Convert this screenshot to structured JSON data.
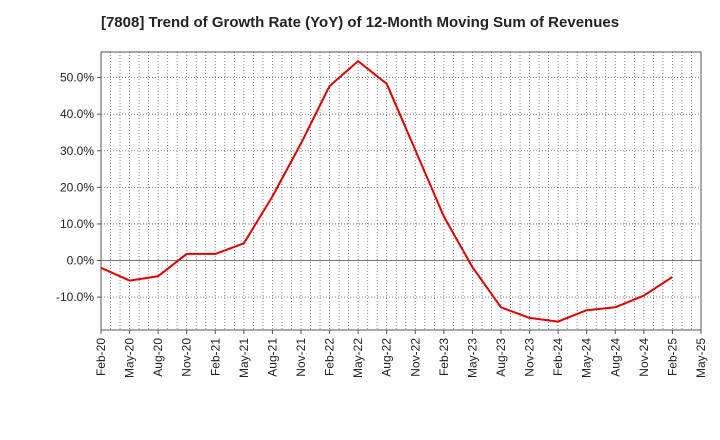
{
  "chart_data": {
    "type": "line",
    "title": "[7808]  Trend of Growth Rate (YoY) of 12-Month Moving Sum of Revenues",
    "xlabel": "",
    "ylabel": "",
    "x_tick_labels": [
      "Feb-20",
      "May-20",
      "Aug-20",
      "Nov-20",
      "Feb-21",
      "May-21",
      "Aug-21",
      "Nov-21",
      "Feb-22",
      "May-22",
      "Aug-22",
      "Nov-22",
      "Feb-23",
      "May-23",
      "Aug-23",
      "Nov-23",
      "Feb-24",
      "May-24",
      "Aug-24",
      "Nov-24",
      "Feb-25",
      "May-25"
    ],
    "y_ticks": [
      -10,
      0,
      10,
      20,
      30,
      40,
      50
    ],
    "y_tick_labels": [
      "-10.0%",
      "0.0%",
      "10.0%",
      "20.0%",
      "30.0%",
      "40.0%",
      "50.0%"
    ],
    "ylim": [
      -19,
      57
    ],
    "grid": true,
    "series": [
      {
        "color": "#e00000",
        "x": [
          "Feb-20",
          "May-20",
          "Aug-20",
          "Nov-20",
          "Feb-21",
          "May-21",
          "Aug-21",
          "Nov-21",
          "Feb-22",
          "May-22",
          "Aug-22",
          "Nov-22",
          "Feb-23",
          "May-23",
          "Aug-23",
          "Nov-23",
          "Feb-24",
          "May-24",
          "Aug-24",
          "Nov-24",
          "Feb-25"
        ],
        "values": [
          -2.0,
          -5.5,
          -4.3,
          1.8,
          1.8,
          4.7,
          17.5,
          32.0,
          47.7,
          54.5,
          48.3,
          30.2,
          12.0,
          -1.8,
          -12.8,
          -15.7,
          -16.7,
          -13.6,
          -12.8,
          -9.6,
          -4.5
        ]
      }
    ]
  }
}
